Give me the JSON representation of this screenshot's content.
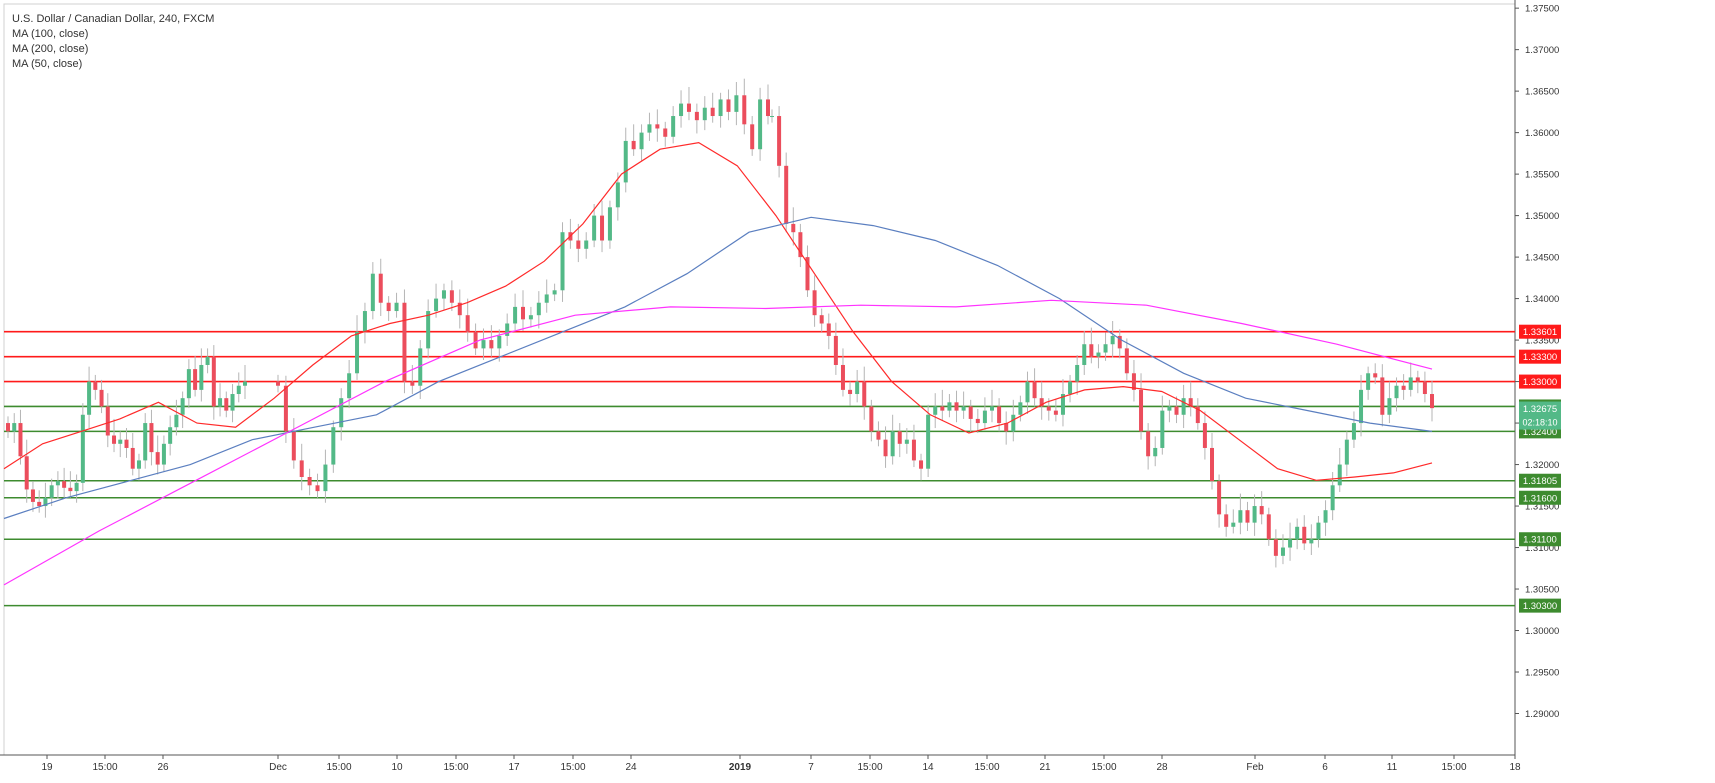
{
  "legend": {
    "title": "U.S. Dollar / Canadian Dollar, 240, FXCM",
    "ma100": "MA (100, close)",
    "ma200": "MA (200, close)",
    "ma50": "MA (50, close)"
  },
  "colors": {
    "up": "#53b987",
    "down": "#eb4d5c",
    "ma50": "#ff2a2a",
    "ma100": "#5b7fc0",
    "ma200": "#ff33ff",
    "resistance": "#ff1a1a",
    "support": "#3d8b2f",
    "axis_text": "#333333"
  },
  "chart_data": {
    "type": "candlestick",
    "title": "U.S. Dollar / Canadian Dollar, 240, FXCM",
    "ylim": [
      1.285,
      1.3755
    ],
    "y_ticks": [
      "1.37500",
      "1.37000",
      "1.36500",
      "1.36000",
      "1.35500",
      "1.35000",
      "1.34500",
      "1.34000",
      "1.33500",
      "1.33000",
      "1.32500",
      "1.32000",
      "1.31500",
      "1.31000",
      "1.30500",
      "1.30000",
      "1.29500",
      "1.29000"
    ],
    "x_ticks": [
      "19",
      "15:00",
      "26",
      "Dec",
      "15:00",
      "10",
      "15:00",
      "17",
      "15:00",
      "24",
      "2019",
      "7",
      "15:00",
      "14",
      "15:00",
      "21",
      "15:00",
      "28",
      "Feb",
      "6",
      "11",
      "15:00",
      "18"
    ],
    "horizontal_levels": [
      {
        "value": 1.33601,
        "label": "1.33601",
        "kind": "resistance"
      },
      {
        "value": 1.333,
        "label": "1.33300",
        "kind": "resistance"
      },
      {
        "value": 1.33,
        "label": "1.33000",
        "kind": "resistance"
      },
      {
        "value": 1.327,
        "label": "1.32700",
        "kind": "support"
      },
      {
        "value": 1.324,
        "label": "1.32400",
        "kind": "support"
      },
      {
        "value": 1.31805,
        "label": "1.31805",
        "kind": "support"
      },
      {
        "value": 1.316,
        "label": "1.31600",
        "kind": "support"
      },
      {
        "value": 1.311,
        "label": "1.31100",
        "kind": "support"
      },
      {
        "value": 1.303,
        "label": "1.30300",
        "kind": "support"
      }
    ],
    "current_price": {
      "value": 1.32675,
      "label": "1.32675",
      "countdown": "02:18:10"
    },
    "price_path": [
      [
        1.324,
        1.325,
        1.321,
        1.317,
        1.3155,
        1.315,
        1.316,
        1.3175,
        1.318,
        1.3172,
        1.3168,
        1.3178,
        1.326,
        1.33,
        1.329,
        1.327,
        1.3235,
        1.3225,
        1.323,
        1.322,
        1.3195,
        1.3205,
        1.325,
        1.3215,
        1.32,
        1.3225,
        1.3245,
        1.326,
        1.328,
        1.3315,
        1.329,
        1.332,
        1.333,
        1.327,
        1.328,
        1.3265,
        1.3285,
        1.3295,
        1.33
      ],
      [
        1.3295,
        1.324,
        1.3205,
        1.3185,
        1.3175,
        1.3168,
        1.32,
        1.3245,
        1.328,
        1.331,
        1.336,
        1.3385,
        1.343,
        1.3395,
        1.3385,
        1.3395,
        1.33,
        1.3295,
        1.334,
        1.3385,
        1.34,
        1.341,
        1.3395,
        1.338,
        1.336,
        1.334,
        1.335,
        1.334,
        1.3355,
        1.337,
        1.339,
        1.3375,
        1.338,
        1.3395,
        1.3405,
        1.341,
        1.348,
        1.347,
        1.346,
        1.347,
        1.35,
        1.347,
        1.351,
        1.354,
        1.359,
        1.358,
        1.36,
        1.361,
        1.3605,
        1.3595,
        1.362,
        1.3635,
        1.3625,
        1.3615,
        1.363,
        1.362,
        1.364,
        1.3625,
        1.3645,
        1.361,
        1.358,
        1.364,
        1.362
      ],
      [
        1.362,
        1.356,
        1.349,
        1.348,
        1.345,
        1.341,
        1.338,
        1.337,
        1.3355,
        1.332,
        1.329,
        1.3285,
        1.33,
        1.327,
        1.324,
        1.323,
        1.321,
        1.324,
        1.3225,
        1.323,
        1.3205,
        1.3195,
        1.326,
        1.327,
        1.3265,
        1.3275,
        1.3265,
        1.327,
        1.3255,
        1.325,
        1.3265,
        1.327,
        1.325,
        1.324,
        1.326,
        1.3275,
        1.33,
        1.328,
        1.327,
        1.3265,
        1.326,
        1.3285,
        1.33,
        1.332,
        1.3345,
        1.333,
        1.3335,
        1.3345,
        1.3355,
        1.334,
        1.331,
        1.329,
        1.324,
        1.321,
        1.322,
        1.3265,
        1.327,
        1.326,
        1.328,
        1.327,
        1.325,
        1.322,
        1.318,
        1.314,
        1.3125,
        1.313,
        1.3145,
        1.313,
        1.315,
        1.314,
        1.311,
        1.309,
        1.31,
        1.311,
        1.3125,
        1.3105,
        1.311,
        1.313,
        1.3145,
        1.3175,
        1.32,
        1.323,
        1.325,
        1.329,
        1.331,
        1.3305,
        1.326,
        1.328,
        1.3295,
        1.329,
        1.3305,
        1.33,
        1.3285,
        1.3268
      ]
    ],
    "ma50": [
      1.3195,
      1.3225,
      1.324,
      1.3255,
      1.3275,
      1.325,
      1.3245,
      1.328,
      1.332,
      1.3355,
      1.337,
      1.338,
      1.3395,
      1.3415,
      1.3445,
      1.349,
      1.355,
      1.358,
      1.3588,
      1.356,
      1.35,
      1.343,
      1.336,
      1.33,
      1.326,
      1.3238,
      1.325,
      1.3275,
      1.329,
      1.3294,
      1.3288,
      1.3265,
      1.323,
      1.3195,
      1.3181,
      1.3185,
      1.319,
      1.3202
    ],
    "ma100": [
      1.3135,
      1.316,
      1.318,
      1.32,
      1.323,
      1.3245,
      1.326,
      1.33,
      1.333,
      1.336,
      1.339,
      1.343,
      1.348,
      1.3498,
      1.3488,
      1.347,
      1.344,
      1.34,
      1.335,
      1.331,
      1.328,
      1.3265,
      1.325,
      1.324
    ],
    "ma200": [
      1.3055,
      1.312,
      1.318,
      1.324,
      1.33,
      1.335,
      1.338,
      1.339,
      1.3388,
      1.3392,
      1.339,
      1.3398,
      1.3392,
      1.337,
      1.3345,
      1.3315
    ]
  }
}
